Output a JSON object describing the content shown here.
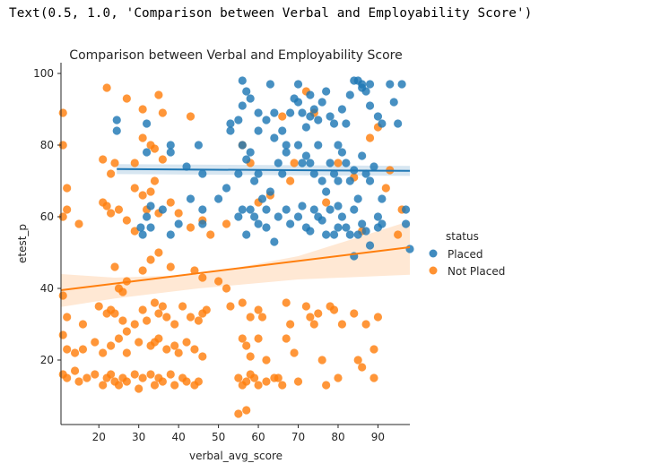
{
  "output_text": "Text(0.5, 1.0, 'Comparison between Verbal and Employability Score')",
  "chart_data": {
    "type": "scatter",
    "title": "Comparison between Verbal and Employability Score",
    "xlabel": "verbal_avg_score",
    "ylabel": "etest_p",
    "xlim": [
      10.5,
      98
    ],
    "ylim": [
      2,
      103
    ],
    "x_ticks": [
      20,
      30,
      40,
      50,
      60,
      70,
      80,
      90
    ],
    "y_ticks": [
      20,
      40,
      60,
      80,
      100
    ],
    "grid": false,
    "legend": {
      "title": "status",
      "placement": "right",
      "entries": [
        {
          "label": "Placed",
          "color": "#1f77b4"
        },
        {
          "label": "Not Placed",
          "color": "#ff7f0e"
        }
      ]
    },
    "series": [
      {
        "name": "Placed",
        "color": "#1f77b4",
        "regression": {
          "x": [
            24.5,
            98
          ],
          "y": [
            73.3,
            72.8
          ],
          "ci_half_width": 1.4
        },
        "points": [
          [
            24.5,
            87
          ],
          [
            24.5,
            84
          ],
          [
            32,
            86
          ],
          [
            32,
            78
          ],
          [
            38,
            80
          ],
          [
            38,
            78
          ],
          [
            45,
            80
          ],
          [
            42,
            74
          ],
          [
            46,
            72
          ],
          [
            53,
            84
          ],
          [
            53,
            86
          ],
          [
            30.5,
            57
          ],
          [
            31,
            55
          ],
          [
            32,
            60
          ],
          [
            33,
            63
          ],
          [
            33,
            57
          ],
          [
            36,
            62
          ],
          [
            40,
            58
          ],
          [
            38,
            55
          ],
          [
            43,
            65
          ],
          [
            46,
            62
          ],
          [
            46,
            58
          ],
          [
            55,
            87
          ],
          [
            56,
            91
          ],
          [
            57,
            95
          ],
          [
            56,
            98
          ],
          [
            58,
            93
          ],
          [
            60,
            89
          ],
          [
            60,
            84
          ],
          [
            62,
            87
          ],
          [
            63,
            97
          ],
          [
            64,
            89
          ],
          [
            66,
            84
          ],
          [
            68,
            89
          ],
          [
            55,
            72
          ],
          [
            57,
            76
          ],
          [
            56,
            80
          ],
          [
            58,
            78
          ],
          [
            60,
            72
          ],
          [
            59,
            70
          ],
          [
            61,
            65
          ],
          [
            63,
            67
          ],
          [
            65,
            75
          ],
          [
            66,
            72
          ],
          [
            67,
            80
          ],
          [
            67,
            78
          ],
          [
            55,
            60
          ],
          [
            56,
            62
          ],
          [
            58,
            62
          ],
          [
            57,
            55
          ],
          [
            59,
            60
          ],
          [
            60,
            58
          ],
          [
            62,
            57
          ],
          [
            64,
            53
          ],
          [
            65,
            60
          ],
          [
            67,
            62
          ],
          [
            68,
            58
          ],
          [
            70,
            97
          ],
          [
            70,
            92
          ],
          [
            71,
            89
          ],
          [
            72,
            85
          ],
          [
            73,
            88
          ],
          [
            73,
            94
          ],
          [
            74,
            90
          ],
          [
            75,
            87
          ],
          [
            76,
            92
          ],
          [
            77,
            95
          ],
          [
            78,
            88
          ],
          [
            79,
            86
          ],
          [
            70,
            80
          ],
          [
            71,
            75
          ],
          [
            72,
            77
          ],
          [
            73,
            75
          ],
          [
            74,
            72
          ],
          [
            75,
            80
          ],
          [
            76,
            70
          ],
          [
            77,
            67
          ],
          [
            78,
            75
          ],
          [
            79,
            72
          ],
          [
            80,
            80
          ],
          [
            80,
            70
          ],
          [
            70,
            60
          ],
          [
            71,
            63
          ],
          [
            72,
            57
          ],
          [
            73,
            56
          ],
          [
            74,
            62
          ],
          [
            75,
            60
          ],
          [
            76,
            59
          ],
          [
            77,
            55
          ],
          [
            78,
            62
          ],
          [
            79,
            55
          ],
          [
            80,
            63
          ],
          [
            80,
            57
          ],
          [
            81,
            90
          ],
          [
            82,
            86
          ],
          [
            83,
            94
          ],
          [
            84,
            98
          ],
          [
            85,
            98
          ],
          [
            86,
            96
          ],
          [
            86,
            97
          ],
          [
            87,
            95
          ],
          [
            88,
            97
          ],
          [
            88,
            91
          ],
          [
            90,
            88
          ],
          [
            91,
            86
          ],
          [
            81,
            78
          ],
          [
            82,
            75
          ],
          [
            83,
            70
          ],
          [
            84,
            73
          ],
          [
            85,
            65
          ],
          [
            86,
            77
          ],
          [
            87,
            72
          ],
          [
            88,
            70
          ],
          [
            89,
            74
          ],
          [
            90,
            60
          ],
          [
            91,
            65
          ],
          [
            81,
            60
          ],
          [
            82,
            57
          ],
          [
            83,
            55
          ],
          [
            84,
            62
          ],
          [
            85,
            55
          ],
          [
            86,
            58
          ],
          [
            87,
            56
          ],
          [
            88,
            52
          ],
          [
            90,
            57
          ],
          [
            91,
            58
          ],
          [
            93,
            97
          ],
          [
            94,
            92
          ],
          [
            84,
            49
          ],
          [
            95,
            86
          ],
          [
            96,
            97
          ],
          [
            97,
            58
          ],
          [
            97,
            62
          ],
          [
            98,
            51
          ],
          [
            62,
            62
          ],
          [
            64,
            82
          ],
          [
            69,
            93
          ],
          [
            52,
            68
          ],
          [
            50,
            65
          ]
        ]
      },
      {
        "name": "Not Placed",
        "color": "#ff7f0e",
        "regression": {
          "x": [
            10.5,
            98
          ],
          "y": [
            39.5,
            51.5
          ],
          "ci": {
            "x": [
              10.5,
              24,
              45,
              70,
              98
            ],
            "lower": [
              34.8,
              37.2,
              40.0,
              42.5,
              43.8
            ],
            "upper": [
              44.0,
              43.0,
              43.8,
              49.0,
              58.8
            ]
          }
        },
        "points": [
          [
            11,
            89
          ],
          [
            11,
            80
          ],
          [
            12,
            68
          ],
          [
            12,
            62
          ],
          [
            11,
            60
          ],
          [
            15,
            58
          ],
          [
            22,
            96
          ],
          [
            27,
            93
          ],
          [
            31,
            90
          ],
          [
            35,
            94
          ],
          [
            36,
            89
          ],
          [
            43,
            88
          ],
          [
            21,
            76
          ],
          [
            24,
            75
          ],
          [
            23,
            72
          ],
          [
            29,
            75
          ],
          [
            31,
            82
          ],
          [
            33,
            80
          ],
          [
            34,
            79
          ],
          [
            36,
            76
          ],
          [
            34,
            70
          ],
          [
            29,
            68
          ],
          [
            31,
            66
          ],
          [
            33,
            67
          ],
          [
            21,
            64
          ],
          [
            22,
            63
          ],
          [
            23,
            61
          ],
          [
            25,
            62
          ],
          [
            27,
            59
          ],
          [
            29,
            56
          ],
          [
            32,
            62
          ],
          [
            35,
            61
          ],
          [
            38,
            64
          ],
          [
            40,
            61
          ],
          [
            43,
            57
          ],
          [
            46,
            59
          ],
          [
            24,
            46
          ],
          [
            25,
            40
          ],
          [
            26,
            39
          ],
          [
            27,
            42
          ],
          [
            31,
            45
          ],
          [
            33,
            48
          ],
          [
            35,
            50
          ],
          [
            38,
            46
          ],
          [
            44,
            45
          ],
          [
            46,
            43
          ],
          [
            50,
            42
          ],
          [
            52,
            40
          ],
          [
            11,
            38
          ],
          [
            12,
            32
          ],
          [
            16,
            30
          ],
          [
            20,
            35
          ],
          [
            22,
            33
          ],
          [
            23,
            34
          ],
          [
            24,
            33
          ],
          [
            26,
            31
          ],
          [
            27,
            28
          ],
          [
            29,
            30
          ],
          [
            31,
            34
          ],
          [
            32,
            31
          ],
          [
            34,
            36
          ],
          [
            35,
            33
          ],
          [
            36,
            35
          ],
          [
            37,
            32
          ],
          [
            39,
            30
          ],
          [
            41,
            35
          ],
          [
            43,
            32
          ],
          [
            45,
            31
          ],
          [
            46,
            33
          ],
          [
            47,
            34
          ],
          [
            56,
            36
          ],
          [
            58,
            32
          ],
          [
            11,
            27
          ],
          [
            12,
            23
          ],
          [
            14,
            22
          ],
          [
            16,
            23
          ],
          [
            19,
            25
          ],
          [
            21,
            22
          ],
          [
            23,
            24
          ],
          [
            25,
            26
          ],
          [
            27,
            22
          ],
          [
            30,
            25
          ],
          [
            33,
            24
          ],
          [
            34,
            25
          ],
          [
            35,
            26
          ],
          [
            37,
            23
          ],
          [
            39,
            24
          ],
          [
            40,
            22
          ],
          [
            42,
            25
          ],
          [
            44,
            23
          ],
          [
            46,
            21
          ],
          [
            56,
            26
          ],
          [
            57,
            24
          ],
          [
            58,
            21
          ],
          [
            60,
            26
          ],
          [
            62,
            20
          ],
          [
            11,
            16
          ],
          [
            12,
            15
          ],
          [
            14,
            17
          ],
          [
            15,
            14
          ],
          [
            17,
            15
          ],
          [
            19,
            16
          ],
          [
            21,
            13
          ],
          [
            22,
            15
          ],
          [
            23,
            16
          ],
          [
            24,
            14
          ],
          [
            25,
            13
          ],
          [
            26,
            15
          ],
          [
            27,
            14
          ],
          [
            29,
            16
          ],
          [
            30,
            12
          ],
          [
            31,
            15
          ],
          [
            33,
            16
          ],
          [
            34,
            13
          ],
          [
            35,
            15
          ],
          [
            36,
            14
          ],
          [
            38,
            16
          ],
          [
            39,
            13
          ],
          [
            41,
            15
          ],
          [
            42,
            14
          ],
          [
            44,
            13
          ],
          [
            45,
            14
          ],
          [
            55,
            15
          ],
          [
            56,
            13
          ],
          [
            57,
            14
          ],
          [
            58,
            16
          ],
          [
            59,
            15
          ],
          [
            60,
            13
          ],
          [
            62,
            14
          ],
          [
            64,
            15
          ],
          [
            55,
            5
          ],
          [
            57,
            6
          ],
          [
            65,
            15
          ],
          [
            66,
            13
          ],
          [
            67,
            26
          ],
          [
            69,
            22
          ],
          [
            70,
            14
          ],
          [
            72,
            35
          ],
          [
            73,
            32
          ],
          [
            74,
            30
          ],
          [
            75,
            33
          ],
          [
            76,
            20
          ],
          [
            77,
            13
          ],
          [
            78,
            35
          ],
          [
            79,
            34
          ],
          [
            80,
            15
          ],
          [
            81,
            30
          ],
          [
            84,
            33
          ],
          [
            85,
            20
          ],
          [
            86,
            18
          ],
          [
            87,
            30
          ],
          [
            89,
            15
          ],
          [
            89,
            23
          ],
          [
            90,
            32
          ],
          [
            52,
            58
          ],
          [
            48,
            55
          ],
          [
            56,
            80
          ],
          [
            58,
            75
          ],
          [
            60,
            64
          ],
          [
            63,
            66
          ],
          [
            66,
            88
          ],
          [
            68,
            70
          ],
          [
            69,
            75
          ],
          [
            72,
            95
          ],
          [
            74,
            89
          ],
          [
            77,
            64
          ],
          [
            80,
            75
          ],
          [
            84,
            71
          ],
          [
            86,
            56
          ],
          [
            88,
            82
          ],
          [
            90,
            85
          ],
          [
            92,
            68
          ],
          [
            93,
            73
          ],
          [
            95,
            55
          ],
          [
            96,
            62
          ],
          [
            53,
            35
          ],
          [
            60,
            34
          ],
          [
            61,
            32
          ],
          [
            67,
            36
          ],
          [
            68,
            30
          ]
        ]
      }
    ]
  }
}
